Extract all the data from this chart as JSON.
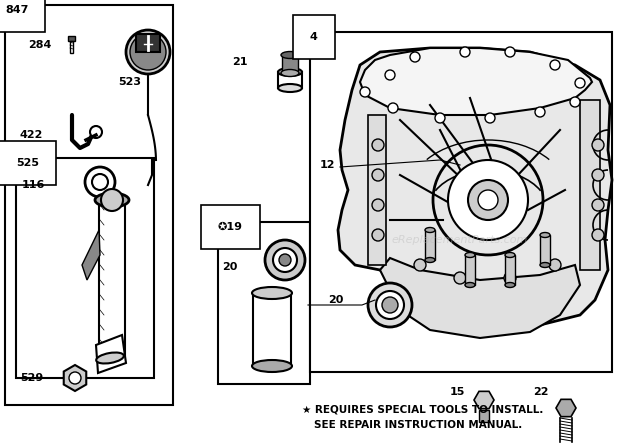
{
  "bg_color": "#ffffff",
  "watermark": "eReplacementParts.com",
  "footer_line1": "★ REQUIRES SPECIAL TOOLS TO INSTALL.",
  "footer_line2": "SEE REPAIR INSTRUCTION MANUAL.",
  "fig_w": 6.2,
  "fig_h": 4.46,
  "dpi": 100
}
